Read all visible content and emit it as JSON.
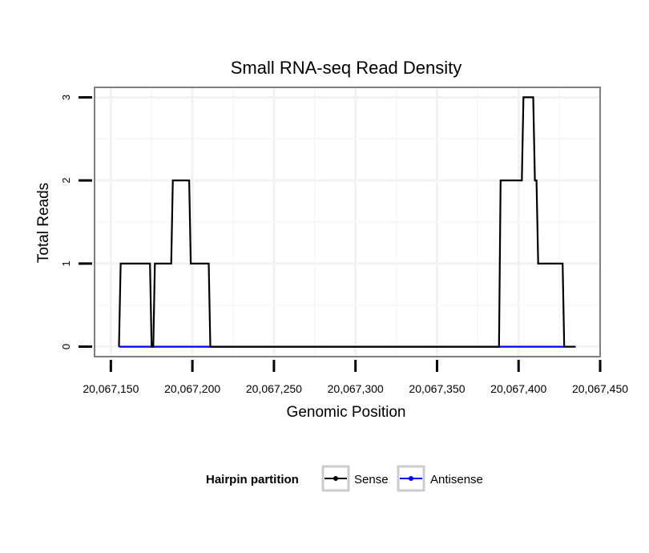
{
  "chart_data": {
    "type": "line",
    "title": "Small RNA-seq Read Density",
    "xlabel": "Genomic Position",
    "ylabel": "Total Reads",
    "xlim": [
      20067140,
      20067450
    ],
    "ylim": [
      -0.12,
      3.12
    ],
    "x_ticks": [
      20067150,
      20067200,
      20067250,
      20067300,
      20067350,
      20067400,
      20067450
    ],
    "x_tick_labels": [
      "20,067,150",
      "20,067,200",
      "20,067,250",
      "20,067,300",
      "20,067,350",
      "20,067,400",
      "20,067,450"
    ],
    "y_ticks": [
      0,
      1,
      2,
      3
    ],
    "y_tick_labels": [
      "0",
      "1",
      "2",
      "3"
    ],
    "grid": true,
    "legend": {
      "title": "Hairpin partition",
      "position": "bottom"
    },
    "series": [
      {
        "name": "Sense",
        "color": "#000000",
        "x": [
          20067155,
          20067156,
          20067174,
          20067175,
          20067176,
          20067177,
          20067187,
          20067188,
          20067198,
          20067199,
          20067210,
          20067211,
          20067388,
          20067389,
          20067402,
          20067403,
          20067409,
          20067410,
          20067411,
          20067412,
          20067427,
          20067428,
          20067435
        ],
        "values": [
          0,
          1,
          1,
          0,
          0,
          1,
          1,
          2,
          2,
          1,
          1,
          0,
          0,
          2,
          2,
          3,
          3,
          2,
          2,
          1,
          1,
          0,
          0
        ]
      },
      {
        "name": "Antisense",
        "color": "#0000ff",
        "x": [
          20067155,
          20067211,
          20067388,
          20067428
        ],
        "values": [
          0,
          0,
          0,
          0
        ]
      }
    ]
  }
}
